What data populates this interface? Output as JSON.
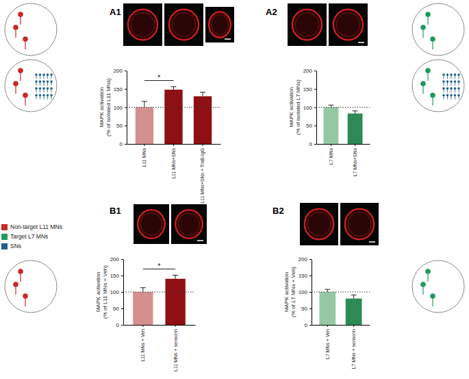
{
  "figure_legend": [
    {
      "label": "Non-target L11 MNs",
      "color": "#c62828"
    },
    {
      "label": "Target L7 MNs",
      "color": "#1f9a5c"
    },
    {
      "label": "SNs",
      "color": "#1f5f8b"
    }
  ],
  "chart_data": [
    {
      "type": "bar",
      "title": "A1",
      "categories": [
        "L11 MNs",
        "L11 MNs+SNs",
        "L11 MNs+SNs + TrkB-IgG"
      ],
      "values": [
        100,
        148,
        130
      ],
      "errors": [
        16,
        8,
        11
      ],
      "colors": [
        "#d4908f",
        "#8e1014",
        "#8e1014"
      ],
      "y_label": [
        "MAPK activation",
        "(% of isolated L11 MNs)"
      ],
      "ylim": [
        0,
        200
      ],
      "yticks": [
        0,
        50,
        100,
        150,
        200
      ],
      "reference_line": {
        "value": 100,
        "line_style": "dotted"
      },
      "annotations": [
        {
          "text": "*",
          "between": [
            "L11 MNs",
            "L11 MNs+SNs"
          ]
        }
      ]
    },
    {
      "type": "bar",
      "title": "A2",
      "categories": [
        "L7 MNs",
        "L7 MNs+SNs"
      ],
      "values": [
        100,
        83
      ],
      "errors": [
        6,
        7
      ],
      "colors": [
        "#94c8a4",
        "#2d8a56"
      ],
      "y_label": [
        "MAPK activation",
        "(% of isolated L7 MNs)"
      ],
      "ylim": [
        0,
        200
      ],
      "yticks": [
        0,
        50,
        100,
        150,
        200
      ],
      "reference_line": {
        "value": 100,
        "line_style": "dotted"
      },
      "annotations": []
    },
    {
      "type": "bar",
      "title": "B1",
      "categories": [
        "L11 MNs + Veh",
        "L11 MNs + sensorin"
      ],
      "values": [
        100,
        140
      ],
      "errors": [
        13,
        11
      ],
      "colors": [
        "#d4908f",
        "#8e1014"
      ],
      "y_label": [
        "MAPK activation",
        "(% of L11 MNs + Veh)"
      ],
      "ylim": [
        0,
        200
      ],
      "yticks": [
        0,
        50,
        100,
        150,
        200
      ],
      "reference_line": {
        "value": 100,
        "line_style": "dotted"
      },
      "annotations": [
        {
          "text": "*",
          "between": [
            "L11 MNs + Veh",
            "L11 MNs + sensorin"
          ]
        }
      ]
    },
    {
      "type": "bar",
      "title": "B2",
      "categories": [
        "L7 MNs + Veh",
        "L7 MNs + sensorin"
      ],
      "values": [
        100,
        80
      ],
      "errors": [
        8,
        11
      ],
      "colors": [
        "#94c8a4",
        "#2d8a56"
      ],
      "y_label": [
        "MAPK activation",
        "(% of L7 MNs + Veh)"
      ],
      "ylim": [
        0,
        200
      ],
      "yticks": [
        0,
        50,
        100,
        150,
        200
      ],
      "reference_line": {
        "value": 100,
        "line_style": "dotted"
      },
      "annotations": []
    }
  ]
}
